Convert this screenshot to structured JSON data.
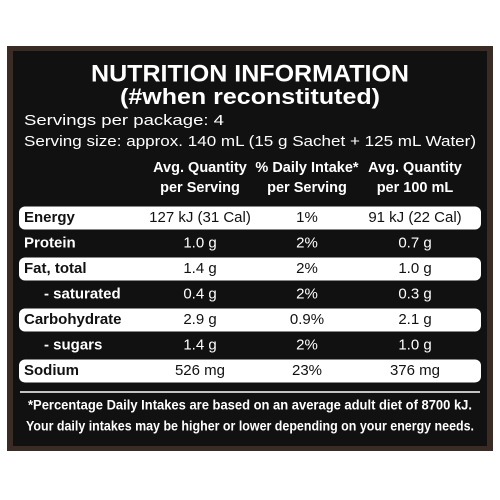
{
  "header": {
    "title": "NUTRITION INFORMATION",
    "subtitle": "(#when reconstituted)"
  },
  "servings": [
    "Servings per package: 4",
    "Serving size: approx. 140 mL (15 g Sachet + 125 mL Water)"
  ],
  "table": {
    "columns": [
      [
        "Avg. Quantity",
        "per Serving"
      ],
      [
        "% Daily Intake*",
        "per Serving"
      ],
      [
        "Avg. Quantity",
        "per 100 mL"
      ]
    ],
    "rows": [
      [
        "Energy",
        "127 kJ (31 Cal)",
        "1%",
        "91 kJ (22 Cal)"
      ],
      [
        "Protein",
        "1.0 g",
        "2%",
        "0.7 g"
      ],
      [
        "Fat, total",
        "1.4 g",
        "2%",
        "1.0 g"
      ],
      [
        "- saturated",
        "0.4 g",
        "2%",
        "0.3 g"
      ],
      [
        "Carbohydrate",
        "2.9 g",
        "0.9%",
        "2.1 g"
      ],
      [
        "- sugars",
        "1.4 g",
        "2%",
        "1.0 g"
      ],
      [
        "Sodium",
        "526 mg",
        "23%",
        "376 mg"
      ]
    ]
  },
  "footnote": [
    "*Percentage Daily Intakes are based on an average adult diet of 8700 kJ.",
    "Your daily intakes may be higher or lower depending on your energy needs."
  ]
}
